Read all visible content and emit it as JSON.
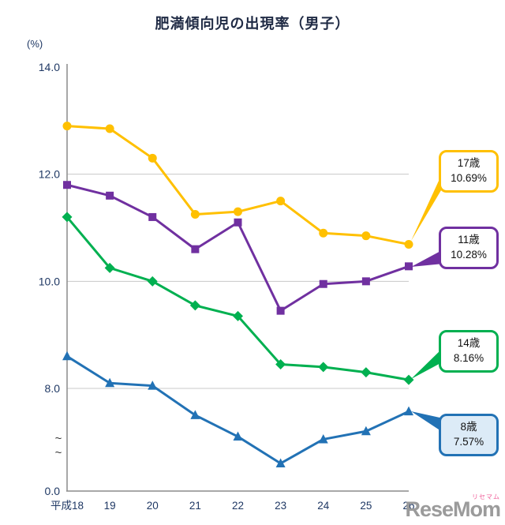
{
  "title": "肥満傾向児の出現率（男子）",
  "y_axis": {
    "unit": "(%)",
    "ticks": [
      14.0,
      12.0,
      10.0,
      8.0
    ],
    "origin": "0.0",
    "break_symbol": "~"
  },
  "chart_data": {
    "type": "line",
    "title": "肥満傾向児の出現率（男子）",
    "xlabel": "",
    "ylabel": "(%)",
    "ylim_display": [
      8.0,
      14.0
    ],
    "axis_break_to_zero": true,
    "grid": "horizontal",
    "legend_position": "right-callouts",
    "x_labels": [
      "平成18",
      "19",
      "20",
      "21",
      "22",
      "23",
      "24",
      "25",
      "26"
    ],
    "y_gridlines": [
      12.0,
      10.0,
      8.0
    ],
    "series": [
      {
        "name": "17歳",
        "color": "#FFC000",
        "marker": "circle",
        "values": [
          12.9,
          12.85,
          12.3,
          11.25,
          11.3,
          11.5,
          10.9,
          10.85,
          10.69
        ],
        "final_value_label": "10.69%"
      },
      {
        "name": "11歳",
        "color": "#7030A0",
        "marker": "square",
        "values": [
          11.8,
          11.6,
          11.2,
          10.6,
          11.1,
          9.45,
          9.95,
          10.0,
          10.28
        ],
        "final_value_label": "10.28%"
      },
      {
        "name": "14歳",
        "color": "#00B050",
        "marker": "diamond",
        "values": [
          11.2,
          10.25,
          10.0,
          9.55,
          9.35,
          8.45,
          8.4,
          8.3,
          8.16
        ],
        "final_value_label": "8.16%"
      },
      {
        "name": "8歳",
        "color": "#2272B5",
        "marker": "triangle",
        "values": [
          8.6,
          8.1,
          8.05,
          7.5,
          7.1,
          6.6,
          7.05,
          7.2,
          7.57
        ],
        "final_value_label": "7.57%"
      }
    ]
  },
  "callouts": [
    {
      "name": "17歳",
      "value": "10.69%",
      "color": "#FFC000",
      "fill": "#FFFFFF"
    },
    {
      "name": "11歳",
      "value": "10.28%",
      "color": "#7030A0",
      "fill": "#FFFFFF"
    },
    {
      "name": "14歳",
      "value": "8.16%",
      "color": "#00B050",
      "fill": "#FFFFFF"
    },
    {
      "name": "8歳",
      "value": "7.57%",
      "color": "#2272B5",
      "fill": "#DCEBF7"
    }
  ],
  "logo": {
    "text": "ReseMom",
    "sub": "リセマム"
  }
}
